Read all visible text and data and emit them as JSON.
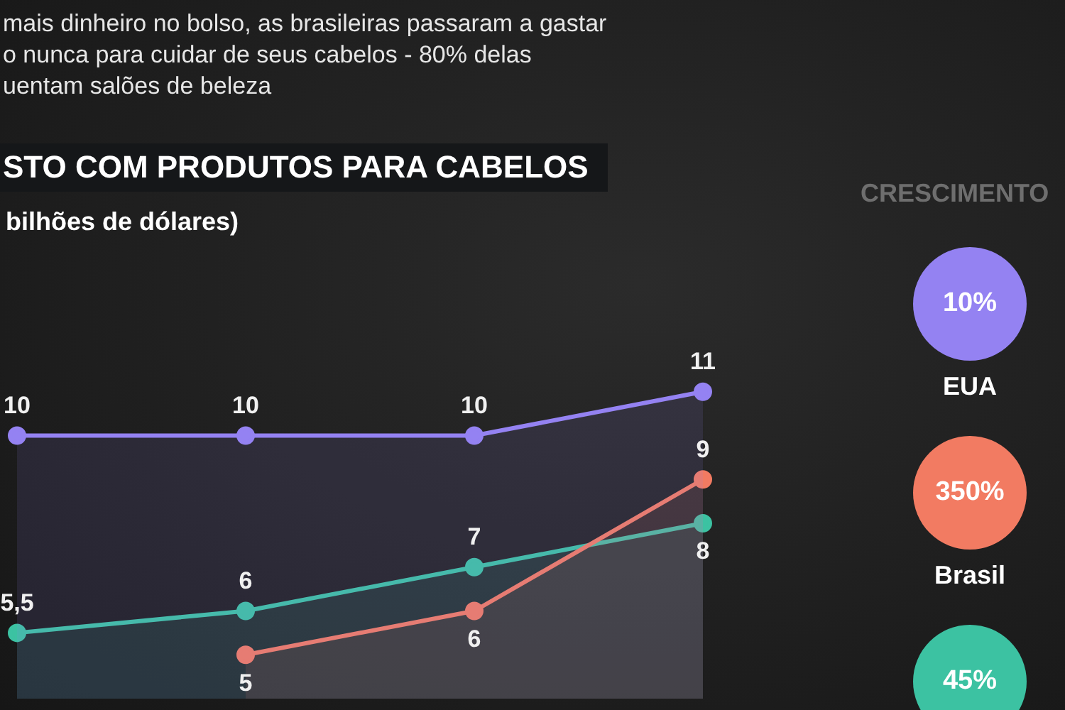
{
  "chart_data": [
    {
      "type": "area",
      "subtitle": "mais dinheiro no bolso, as brasileiras passaram a gastar\no nunca para cuidar de seus cabelos - 80% delas\nuentam salões de beleza",
      "title": "STO COM PRODUTOS PARA CABELOS",
      "ylabel": "bilhões de dólares)",
      "categories": [
        null,
        null,
        null,
        null
      ],
      "series": [
        {
          "color": "#9482f2",
          "values": [
            10,
            10,
            10,
            11
          ],
          "value_labels": [
            "10",
            "10",
            "10",
            "11"
          ]
        },
        {
          "color": "#f27b62",
          "values": [
            null,
            5,
            6,
            9
          ],
          "value_labels": [
            null,
            "5",
            "6",
            "9"
          ]
        },
        {
          "color": "#3cc2a2",
          "values": [
            5.5,
            6,
            7,
            8
          ],
          "value_labels": [
            "5,5",
            "6",
            "7",
            "8"
          ]
        }
      ],
      "marker": "circle",
      "legend": false
    },
    {
      "type": "other",
      "title": "CRESCIMENTO",
      "categories": [
        "EUA",
        "Brasil",
        null
      ],
      "value_labels": [
        "10%",
        "350%",
        "45%"
      ],
      "colors": [
        "#9482f2",
        "#f27b62",
        "#3cc2a2"
      ]
    }
  ]
}
